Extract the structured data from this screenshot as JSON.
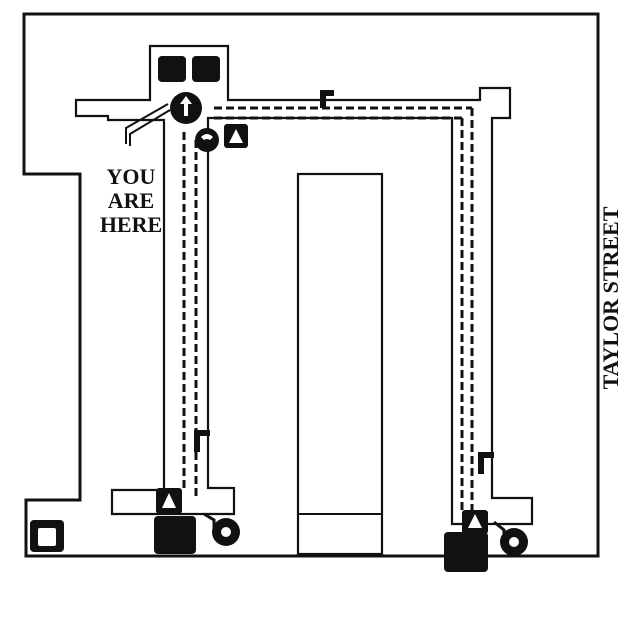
{
  "map": {
    "you_are_here": {
      "line1": "YOU",
      "line2": "ARE",
      "line3": "HERE"
    },
    "street_label": "TAYLOR STREET"
  },
  "colors": {
    "ink": "#111111",
    "paper": "#ffffff"
  },
  "icons": {
    "you_are_here_marker": "location-pin-icon",
    "elevator": "elevator-up-icon",
    "wheelchair": "wheelchair-accessible-icon",
    "telephone": "telephone-icon",
    "restroom": "restroom-icon",
    "stairs": "stairs-icon",
    "exit": "exit-door-icon"
  }
}
